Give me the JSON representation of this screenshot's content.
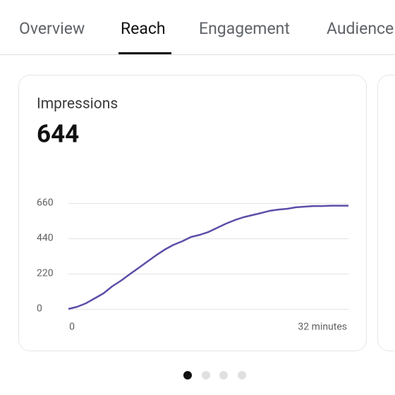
{
  "tabs": [
    "Overview",
    "Reach",
    "Engagement",
    "Audience"
  ],
  "card": {
    "title": "Impressions",
    "value": 644
  },
  "chart_data": {
    "type": "line",
    "x": [
      0,
      1,
      2,
      3,
      4,
      5,
      6,
      7,
      8,
      9,
      10,
      11,
      12,
      13,
      14,
      15,
      16,
      17,
      18,
      19,
      20,
      21,
      22,
      23,
      24,
      25,
      26,
      27,
      28,
      29,
      30,
      31,
      32
    ],
    "values": [
      0,
      13,
      35,
      66,
      97,
      141,
      176,
      216,
      255,
      295,
      334,
      370,
      400,
      422,
      449,
      462,
      480,
      506,
      532,
      554,
      572,
      585,
      598,
      612,
      620,
      625,
      634,
      638,
      642,
      642,
      644,
      644,
      644
    ],
    "color": "#5b4ea8",
    "xlim": [
      0,
      32
    ],
    "xticks": [
      0,
      {
        "value": 32,
        "label": "32 minutes"
      }
    ],
    "ylim": [
      0,
      660
    ],
    "yticks": [
      0,
      220,
      440,
      660
    ],
    "grid": true
  }
}
